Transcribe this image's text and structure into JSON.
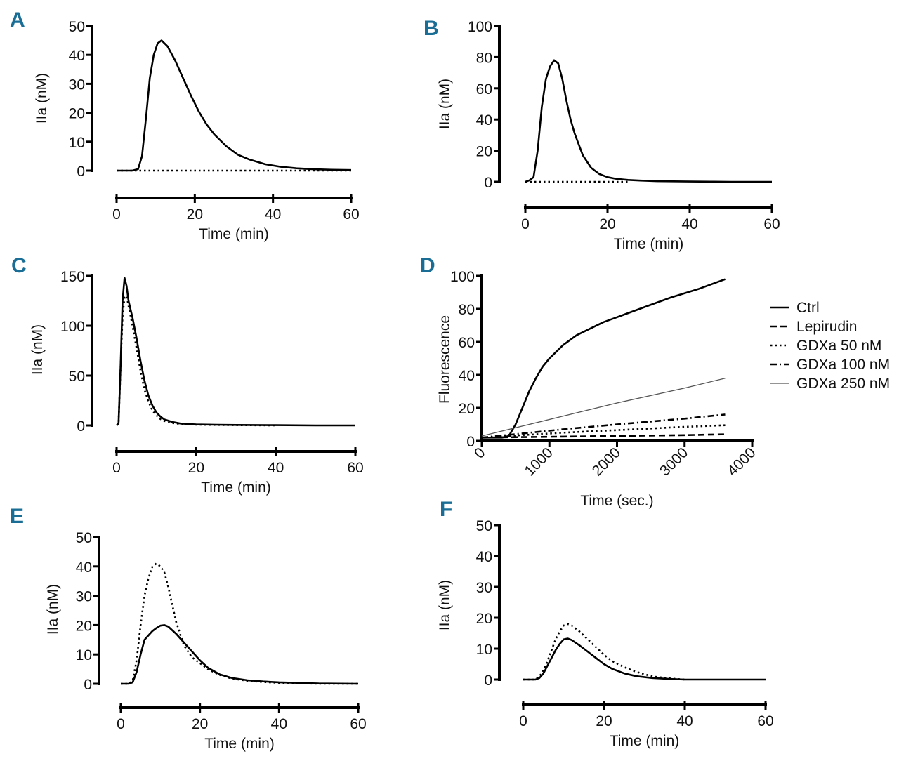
{
  "colors": {
    "panel_label": "#1a6e96",
    "line": "#000000",
    "gray_line": "#555555"
  },
  "chart_data": [
    {
      "id": "A",
      "panel_label": "A",
      "type": "line",
      "xlabel": "Time (min)",
      "ylabel": "IIa (nM)",
      "xlim": [
        0,
        60
      ],
      "ylim": [
        0,
        50
      ],
      "xticks": [
        0,
        20,
        40,
        60
      ],
      "yticks": [
        0,
        10,
        20,
        30,
        40,
        50
      ],
      "series": [
        {
          "name": "solid",
          "style": "solid",
          "x": [
            0,
            4,
            5.5,
            6.5,
            7.5,
            8.5,
            9.5,
            10.5,
            11.5,
            13,
            15,
            17,
            19,
            21,
            23,
            25,
            28,
            31,
            34,
            38,
            42,
            46,
            50,
            55,
            60
          ],
          "y": [
            0,
            0,
            0.5,
            5,
            18,
            32,
            40,
            44,
            45,
            43,
            38,
            32,
            26,
            20.5,
            16,
            12.5,
            8.5,
            5.5,
            3.8,
            2.2,
            1.3,
            0.8,
            0.5,
            0.3,
            0.2
          ]
        },
        {
          "name": "dotted",
          "style": "dotted",
          "x": [
            0,
            60
          ],
          "y": [
            0,
            0
          ]
        }
      ]
    },
    {
      "id": "B",
      "panel_label": "B",
      "type": "line",
      "xlabel": "Time (min)",
      "ylabel": "IIa (nM)",
      "xlim": [
        0,
        60
      ],
      "ylim": [
        0,
        100
      ],
      "xticks": [
        0,
        20,
        40,
        60
      ],
      "yticks": [
        0,
        20,
        40,
        60,
        80,
        100
      ],
      "series": [
        {
          "name": "solid",
          "style": "solid",
          "x": [
            0,
            1,
            2,
            3,
            4,
            5,
            6,
            7,
            8,
            9,
            10,
            11,
            12,
            13,
            14,
            16,
            18,
            20,
            22,
            25,
            28,
            32,
            36,
            40,
            45,
            50,
            60
          ],
          "y": [
            0,
            1,
            3,
            20,
            48,
            66,
            74,
            78,
            76,
            66,
            52,
            40,
            31,
            24,
            17,
            9,
            5,
            3,
            2,
            1.2,
            0.8,
            0.4,
            0.3,
            0.2,
            0.1,
            0,
            0
          ]
        },
        {
          "name": "dotted",
          "style": "dotted",
          "x": [
            0,
            25
          ],
          "y": [
            0,
            0
          ]
        }
      ]
    },
    {
      "id": "C",
      "panel_label": "C",
      "type": "line",
      "xlabel": "Time (min)",
      "ylabel": "IIa (nM)",
      "xlim": [
        0,
        60
      ],
      "ylim": [
        0,
        150
      ],
      "xticks": [
        0,
        20,
        40,
        60
      ],
      "yticks": [
        0,
        50,
        100,
        150
      ],
      "series": [
        {
          "name": "solid",
          "style": "solid",
          "x": [
            0,
            0.5,
            1,
            1.5,
            2,
            2.5,
            3,
            4,
            5,
            6,
            7,
            8,
            9,
            10,
            11,
            12,
            14,
            16,
            18,
            20,
            25,
            30,
            40,
            50,
            60
          ],
          "y": [
            0,
            2,
            60,
            125,
            148,
            140,
            125,
            108,
            88,
            65,
            45,
            30,
            20,
            13,
            9,
            6,
            3.5,
            2,
            1.5,
            1,
            0.7,
            0.5,
            0.3,
            0,
            0
          ]
        },
        {
          "name": "dotted",
          "style": "dotted",
          "x": [
            0,
            0.5,
            1,
            1.5,
            2,
            2.5,
            3,
            4,
            5,
            6,
            7,
            8,
            9,
            10,
            11,
            12,
            14,
            16,
            18,
            20,
            25,
            30,
            40
          ],
          "y": [
            0,
            2,
            58,
            110,
            128,
            130,
            120,
            100,
            78,
            55,
            36,
            24,
            15,
            10,
            6.5,
            4.5,
            2.5,
            1.5,
            1,
            0.8,
            0.5,
            0.3,
            0
          ]
        }
      ]
    },
    {
      "id": "D",
      "panel_label": "D",
      "type": "line",
      "xlabel": "Time (sec.)",
      "ylabel": "Fluorescence",
      "xlim": [
        0,
        4000
      ],
      "ylim": [
        0,
        100
      ],
      "xticks": [
        0,
        1000,
        2000,
        3000,
        4000
      ],
      "yticks": [
        0,
        20,
        40,
        60,
        80,
        100
      ],
      "legend_position": "right",
      "series": [
        {
          "name": "Ctrl",
          "style": "solid",
          "x": [
            0,
            300,
            400,
            500,
            600,
            700,
            800,
            900,
            1000,
            1200,
            1400,
            1600,
            1800,
            2000,
            2400,
            2800,
            3200,
            3600
          ],
          "y": [
            2,
            2,
            3,
            10,
            20,
            30,
            38,
            45,
            50,
            58,
            64,
            68,
            72,
            75,
            81,
            87,
            92,
            98
          ]
        },
        {
          "name": "Lepirudin",
          "style": "dashed",
          "x": [
            0,
            600,
            1200,
            2000,
            3000,
            3600
          ],
          "y": [
            2,
            2.3,
            2.6,
            3,
            3.5,
            4
          ]
        },
        {
          "name": "GDXa 50 nM",
          "style": "dotted",
          "x": [
            0,
            600,
            1200,
            2000,
            3000,
            3600
          ],
          "y": [
            2,
            3.5,
            5,
            6.5,
            8.5,
            9.5
          ]
        },
        {
          "name": "GDXa 100 nM",
          "style": "dashdot",
          "x": [
            0,
            600,
            1200,
            2000,
            3000,
            3600
          ],
          "y": [
            2,
            4.5,
            7,
            10,
            13.5,
            16
          ]
        },
        {
          "name": "GDXa 250 nM",
          "style": "thin-gray",
          "x": [
            0,
            600,
            1200,
            2000,
            3000,
            3600
          ],
          "y": [
            3,
            9,
            15,
            23,
            32,
            38
          ]
        }
      ]
    },
    {
      "id": "E",
      "panel_label": "E",
      "type": "line",
      "xlabel": "Time (min)",
      "ylabel": "IIa (nM)",
      "xlim": [
        0,
        60
      ],
      "ylim": [
        0,
        50
      ],
      "xticks": [
        0,
        20,
        40,
        60
      ],
      "yticks": [
        0,
        10,
        20,
        30,
        40,
        50
      ],
      "series": [
        {
          "name": "solid",
          "style": "solid",
          "x": [
            0,
            2,
            3,
            4,
            5,
            6,
            7,
            8,
            9,
            10,
            11,
            12,
            14,
            16,
            18,
            20,
            22,
            25,
            28,
            32,
            36,
            40,
            50,
            60
          ],
          "y": [
            0,
            0,
            0.5,
            4,
            10,
            15,
            16.5,
            18,
            19,
            19.8,
            20,
            19.5,
            17,
            14,
            11,
            8,
            5.5,
            3.2,
            2,
            1.2,
            0.8,
            0.5,
            0.1,
            0
          ]
        },
        {
          "name": "dotted",
          "style": "dotted",
          "x": [
            0,
            2,
            3,
            4,
            5,
            6,
            7,
            8,
            9,
            10,
            11,
            12,
            13,
            14,
            16,
            18,
            20,
            22,
            25,
            28,
            32,
            36,
            40,
            50,
            60
          ],
          "y": [
            0,
            0,
            1,
            8,
            20,
            30,
            36,
            40,
            41,
            40,
            38,
            33,
            27,
            21,
            13,
            9,
            7,
            5,
            3,
            1.8,
            1,
            0.6,
            0.3,
            0,
            0
          ]
        }
      ]
    },
    {
      "id": "F",
      "panel_label": "F",
      "type": "line",
      "xlabel": "Time (min)",
      "ylabel": "IIa (nM)",
      "xlim": [
        0,
        60
      ],
      "ylim": [
        0,
        50
      ],
      "xticks": [
        0,
        20,
        40,
        60
      ],
      "yticks": [
        0,
        10,
        20,
        30,
        40,
        50
      ],
      "series": [
        {
          "name": "solid",
          "style": "solid",
          "x": [
            0,
            3,
            4,
            5,
            6,
            7,
            8,
            9,
            10,
            11,
            12,
            14,
            16,
            18,
            20,
            22,
            25,
            28,
            32,
            36,
            40,
            50,
            60
          ],
          "y": [
            0,
            0,
            0.5,
            2,
            4.5,
            7,
            9.5,
            11.5,
            13,
            13.3,
            12.8,
            11,
            9,
            7,
            5,
            3.5,
            2,
            1.1,
            0.5,
            0.2,
            0,
            0,
            0
          ]
        },
        {
          "name": "dotted",
          "style": "dotted",
          "x": [
            0,
            3,
            4,
            5,
            6,
            7,
            8,
            9,
            10,
            11,
            12,
            14,
            16,
            18,
            20,
            22,
            25,
            28,
            32,
            36,
            40
          ],
          "y": [
            0,
            0,
            1,
            3,
            6,
            9.5,
            13,
            15.5,
            17.5,
            18,
            17.5,
            15.5,
            13,
            10.5,
            8,
            6,
            4,
            2.5,
            1,
            0.4,
            0
          ]
        }
      ]
    }
  ]
}
